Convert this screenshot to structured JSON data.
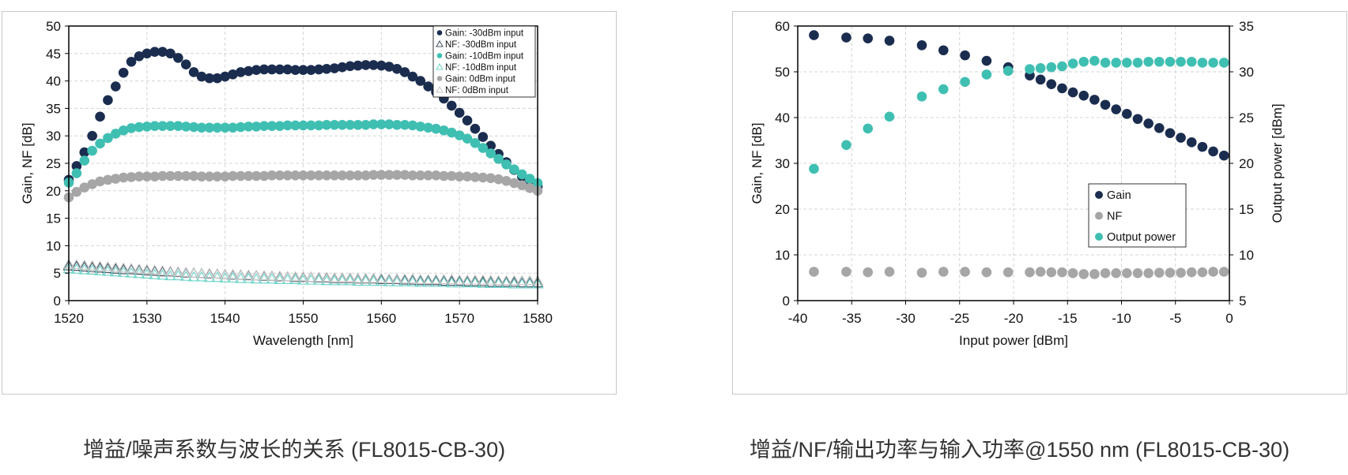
{
  "captions": {
    "left": "增益/噪声系数与波长的关系 (FL8015-CB-30)",
    "right": "增益/NF/输出功率与输入功率@1550 nm (FL8015-CB-30)"
  },
  "chart_data": [
    {
      "type": "scatter",
      "title": "",
      "xlabel": "Wavelength [nm]",
      "ylabel": "Gain, NF [dB]",
      "xlim": [
        1520,
        1580
      ],
      "ylim": [
        0,
        50
      ],
      "xticks": [
        1520,
        1530,
        1540,
        1550,
        1560,
        1570,
        1580
      ],
      "yticks": [
        0,
        5,
        10,
        15,
        20,
        25,
        30,
        35,
        40,
        45,
        50
      ],
      "legend_position": "top-right",
      "gain_x_start": 1520,
      "gain_x_step": 1,
      "series": [
        {
          "name": "Gain: -30dBm input",
          "marker": "circle",
          "color": "#1b2d4f",
          "values": [
            22,
            24.5,
            27,
            30,
            33.5,
            36.5,
            39,
            41.5,
            43.5,
            44.5,
            45,
            45.3,
            45.3,
            45,
            44.2,
            43,
            41.6,
            40.8,
            40.5,
            40.5,
            40.8,
            41.2,
            41.6,
            41.8,
            42,
            42.1,
            42.1,
            42.1,
            42.1,
            42,
            42,
            42,
            42.1,
            42.2,
            42.3,
            42.5,
            42.7,
            42.8,
            42.9,
            42.9,
            42.8,
            42.6,
            42.2,
            41.6,
            40.8,
            40,
            39,
            38,
            36.8,
            35.5,
            34.2,
            32.8,
            31.3,
            29.8,
            28.2,
            26.7,
            25.2,
            23.8,
            22.6,
            21.6,
            20.8
          ]
        },
        {
          "name": "NF: -30dBm input",
          "marker": "triangle-open",
          "color": "#3d4f5f",
          "values": [
            6.3,
            6.2,
            6.1,
            6,
            5.9,
            5.8,
            5.7,
            5.6,
            5.6,
            5.5,
            5.4,
            5.3,
            5.2,
            5.2,
            5.1,
            5,
            5,
            4.9,
            4.8,
            4.8,
            4.7,
            4.6,
            4.6,
            4.5,
            4.5,
            4.4,
            4.4,
            4.3,
            4.3,
            4.2,
            4.2,
            4.2,
            4.1,
            4.1,
            4,
            4,
            4,
            3.9,
            3.9,
            3.9,
            3.8,
            3.8,
            3.8,
            3.7,
            3.7,
            3.6,
            3.6,
            3.6,
            3.5,
            3.5,
            3.5,
            3.4,
            3.4,
            3.4,
            3.3,
            3.3,
            3.3,
            3.3,
            3.2,
            3.2,
            3.2
          ]
        },
        {
          "name": "Gain: -10dBm input",
          "marker": "circle",
          "color": "#3fbfb2",
          "values": [
            21.5,
            23.2,
            25.5,
            27.3,
            28.6,
            29.6,
            30.4,
            31,
            31.4,
            31.6,
            31.7,
            31.8,
            31.8,
            31.8,
            31.8,
            31.7,
            31.6,
            31.5,
            31.5,
            31.5,
            31.5,
            31.5,
            31.6,
            31.7,
            31.7,
            31.8,
            31.8,
            31.8,
            31.9,
            31.9,
            31.9,
            31.9,
            31.9,
            32,
            32,
            32,
            32,
            32,
            32,
            32.1,
            32.1,
            32.1,
            32,
            32,
            31.9,
            31.7,
            31.5,
            31.3,
            31,
            30.6,
            30.1,
            29.5,
            28.7,
            27.8,
            26.8,
            25.8,
            24.8,
            23.9,
            23,
            22.2,
            21.4
          ]
        },
        {
          "name": "NF: -10dBm input",
          "marker": "triangle-open",
          "color": "#6fd4ca",
          "values": [
            5.8,
            5.7,
            5.6,
            5.5,
            5.4,
            5.3,
            5.2,
            5.1,
            5,
            4.9,
            4.8,
            4.7,
            4.6,
            4.5,
            4.5,
            4.4,
            4.3,
            4.3,
            4.2,
            4.2,
            4.1,
            4.1,
            4,
            4,
            3.9,
            3.9,
            3.9,
            3.8,
            3.8,
            3.8,
            3.7,
            3.7,
            3.7,
            3.6,
            3.6,
            3.6,
            3.6,
            3.5,
            3.5,
            3.5,
            3.5,
            3.4,
            3.4,
            3.4,
            3.4,
            3.3,
            3.3,
            3.3,
            3.3,
            3.2,
            3.2,
            3.2,
            3.2,
            3.1,
            3.1,
            3.1,
            3.1,
            3,
            3,
            3,
            3
          ]
        },
        {
          "name": "Gain: 0dBm input",
          "marker": "circle",
          "color": "#a6a6a6",
          "values": [
            18.8,
            19.8,
            20.6,
            21.2,
            21.7,
            22,
            22.2,
            22.4,
            22.5,
            22.6,
            22.6,
            22.6,
            22.7,
            22.7,
            22.7,
            22.7,
            22.7,
            22.6,
            22.6,
            22.6,
            22.6,
            22.7,
            22.7,
            22.7,
            22.7,
            22.7,
            22.8,
            22.8,
            22.8,
            22.8,
            22.8,
            22.8,
            22.8,
            22.8,
            22.8,
            22.8,
            22.8,
            22.8,
            22.8,
            22.9,
            22.9,
            22.9,
            22.9,
            22.9,
            22.8,
            22.8,
            22.8,
            22.8,
            22.7,
            22.7,
            22.6,
            22.6,
            22.5,
            22.4,
            22.3,
            22.1,
            21.8,
            21.4,
            21,
            20.5,
            20
          ]
        },
        {
          "name": "NF: 0dBm input",
          "marker": "triangle-open",
          "color": "#c4c4c4",
          "values": [
            6.6,
            6.5,
            6.4,
            6.3,
            6.2,
            6.1,
            6,
            5.9,
            5.8,
            5.7,
            5.6,
            5.5,
            5.4,
            5.3,
            5.2,
            5.1,
            5,
            4.9,
            4.9,
            4.8,
            4.7,
            4.7,
            4.6,
            4.6,
            4.5,
            4.5,
            4.4,
            4.4,
            4.3,
            4.3,
            4.3,
            4.2,
            4.2,
            4.2,
            4.1,
            4.1,
            4.1,
            4,
            4,
            4,
            4,
            3.9,
            3.9,
            3.9,
            3.9,
            3.8,
            3.8,
            3.8,
            3.8,
            3.8,
            3.7,
            3.7,
            3.7,
            3.7,
            3.7,
            3.6,
            3.6,
            3.6,
            3.6,
            3.6,
            3.6
          ]
        }
      ]
    },
    {
      "type": "scatter",
      "title": "",
      "xlabel": "Input power [dBm]",
      "ylabel": "Gain, NF [dB]",
      "y2label": "Output power [dBm]",
      "xlim": [
        -40,
        0
      ],
      "ylim": [
        0,
        60
      ],
      "y2lim": [
        5,
        35
      ],
      "xticks": [
        -40,
        -35,
        -30,
        -25,
        -20,
        -15,
        -10,
        -5,
        0
      ],
      "yticks": [
        0,
        10,
        20,
        30,
        40,
        50,
        60
      ],
      "y2ticks": [
        5,
        10,
        15,
        20,
        25,
        30,
        35
      ],
      "legend_position": "center-right",
      "x": [
        -38.5,
        -35.5,
        -33.5,
        -31.5,
        -28.5,
        -26.5,
        -24.5,
        -22.5,
        -20.5,
        -18.5,
        -17.5,
        -16.5,
        -15.5,
        -14.5,
        -13.5,
        -12.5,
        -11.5,
        -10.5,
        -9.5,
        -8.5,
        -7.5,
        -6.5,
        -5.5,
        -4.5,
        -3.5,
        -2.5,
        -1.5,
        -0.5
      ],
      "series": [
        {
          "name": "Gain",
          "axis": "left",
          "color": "#1b2d4f",
          "values": [
            58,
            57.5,
            57.3,
            56.8,
            55.8,
            54.7,
            53.6,
            52.4,
            51,
            49.2,
            48.3,
            47.3,
            46.4,
            45.5,
            44.8,
            43.9,
            42.8,
            41.8,
            40.8,
            39.7,
            38.7,
            37.7,
            36.6,
            35.6,
            34.6,
            33.6,
            32.6,
            31.7
          ]
        },
        {
          "name": "NF",
          "axis": "left",
          "color": "#a6a6a6",
          "values": [
            6.3,
            6.3,
            6.2,
            6.3,
            6.1,
            6.3,
            6.3,
            6.2,
            6.2,
            6.2,
            6.3,
            6.2,
            6.2,
            6,
            5.8,
            5.8,
            6,
            6,
            6,
            6,
            6,
            6.1,
            6.1,
            6.1,
            6.2,
            6.2,
            6.3,
            6.3
          ]
        },
        {
          "name": "Output power",
          "axis": "right",
          "color": "#3fbfb2",
          "values": [
            19.4,
            22,
            23.8,
            25.1,
            27.3,
            28.1,
            28.9,
            29.7,
            30.1,
            30.3,
            30.4,
            30.5,
            30.6,
            30.9,
            31.1,
            31.2,
            31,
            31,
            31,
            31,
            31.1,
            31.1,
            31.1,
            31.1,
            31.1,
            31,
            31,
            31
          ]
        }
      ]
    }
  ]
}
